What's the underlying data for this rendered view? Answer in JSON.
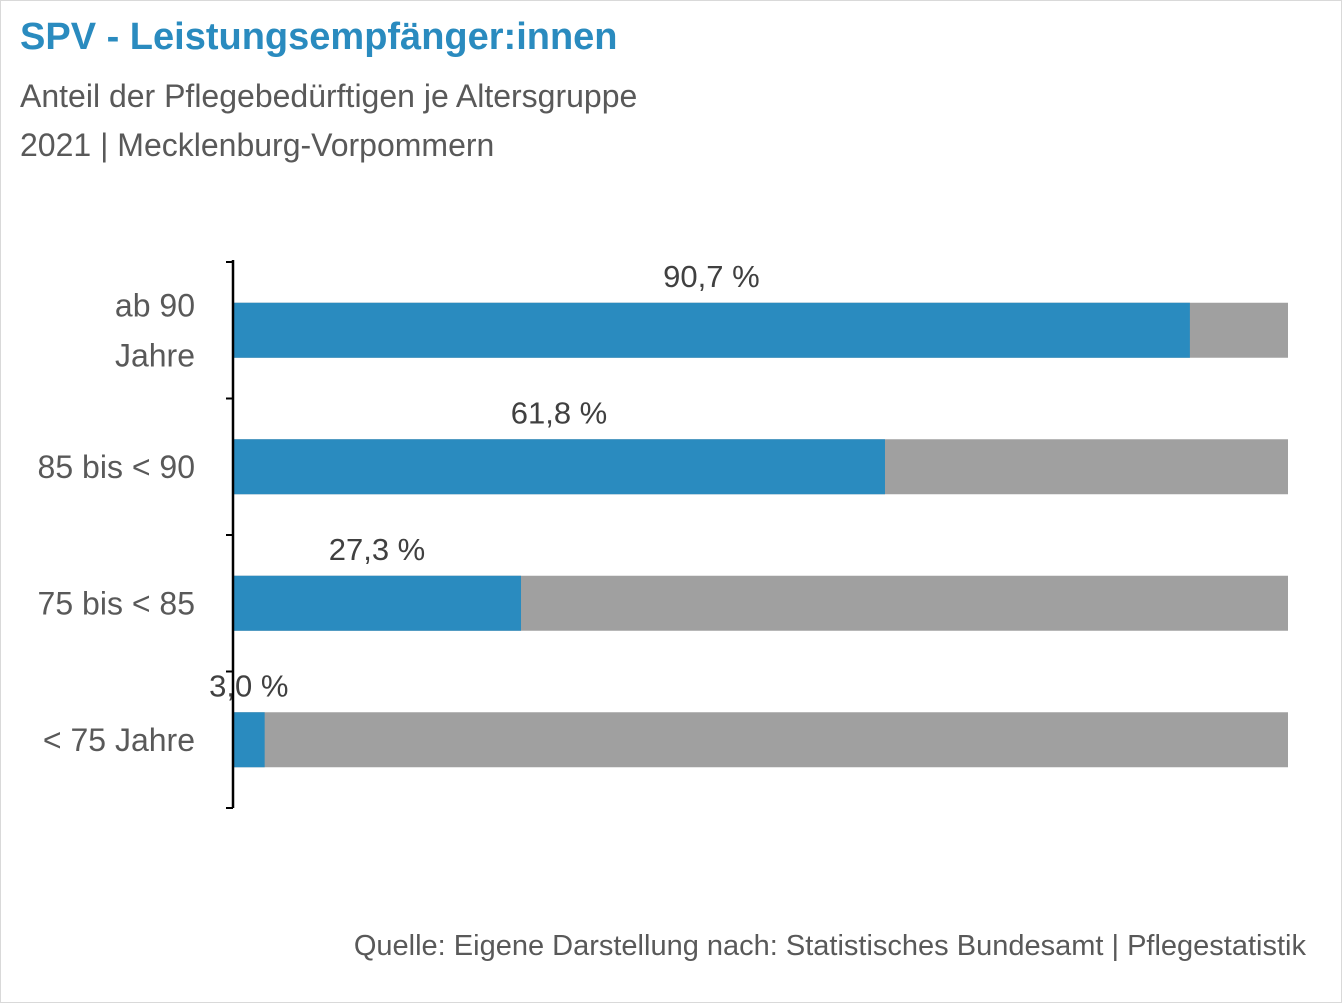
{
  "title": "SPV - Leistungsempfänger:innen",
  "subtitle_line1": "Anteil der Pflegebedürftigen je Altersgruppe",
  "subtitle_line2": "2021 | Mecklenburg-Vorpommern",
  "source": "Quelle: Eigene Darstellung nach: Statistisches Bundesamt | Pflegestatistik",
  "colors": {
    "share": "#2a8bbf",
    "remainder": "#a0a0a0",
    "title": "#2a8bbf",
    "text": "#595959"
  },
  "chart_data": {
    "type": "bar",
    "orientation": "horizontal",
    "stacked": true,
    "xlim": [
      0,
      100
    ],
    "grid": false,
    "categories": [
      [
        "ab 90",
        "Jahre"
      ],
      [
        "85 bis < 90"
      ],
      [
        "75 bis < 85"
      ],
      [
        "< 75 Jahre"
      ]
    ],
    "values": [
      90.7,
      61.8,
      27.3,
      3.0
    ],
    "data_labels": [
      "90,7 %",
      "61,8 %",
      "27,3 %",
      "3,0 %"
    ]
  }
}
